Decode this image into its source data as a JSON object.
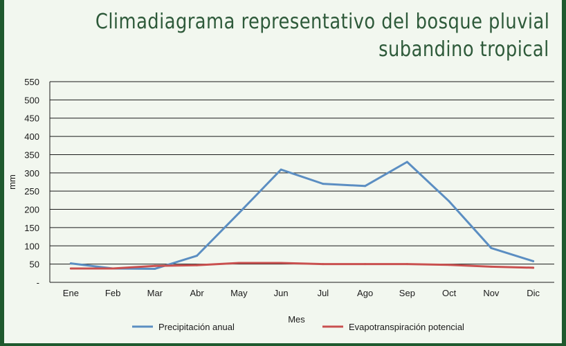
{
  "title_line1": "Climadiagrama representativo del bosque pluvial",
  "title_line2": "subandino tropical",
  "chart_data": {
    "type": "line",
    "title": "Climadiagrama representativo del bosque pluvial subandino tropical",
    "xlabel": "Mes",
    "ylabel": "mm",
    "categories": [
      "Ene",
      "Feb",
      "Mar",
      "Abr",
      "May",
      "Jun",
      "Jul",
      "Ago",
      "Sep",
      "Oct",
      "Nov",
      "Dic"
    ],
    "ylim": [
      0,
      550
    ],
    "yticks": [
      0,
      50,
      100,
      150,
      200,
      250,
      300,
      350,
      400,
      450,
      500,
      550
    ],
    "ytick_labels": [
      "-",
      "50",
      "100",
      "150",
      "200",
      "250",
      "300",
      "350",
      "400",
      "450",
      "500",
      "550"
    ],
    "grid": true,
    "legend": "bottom",
    "series": [
      {
        "name": "Precipitación anual",
        "color": "#5b8ec2",
        "values": [
          52,
          38,
          37,
          73,
          190,
          309,
          270,
          264,
          330,
          222,
          94,
          58
        ]
      },
      {
        "name": "Evapotranspiración potencial",
        "color": "#c9504f",
        "values": [
          38,
          38,
          45,
          47,
          53,
          53,
          50,
          50,
          50,
          48,
          43,
          40
        ]
      }
    ]
  }
}
